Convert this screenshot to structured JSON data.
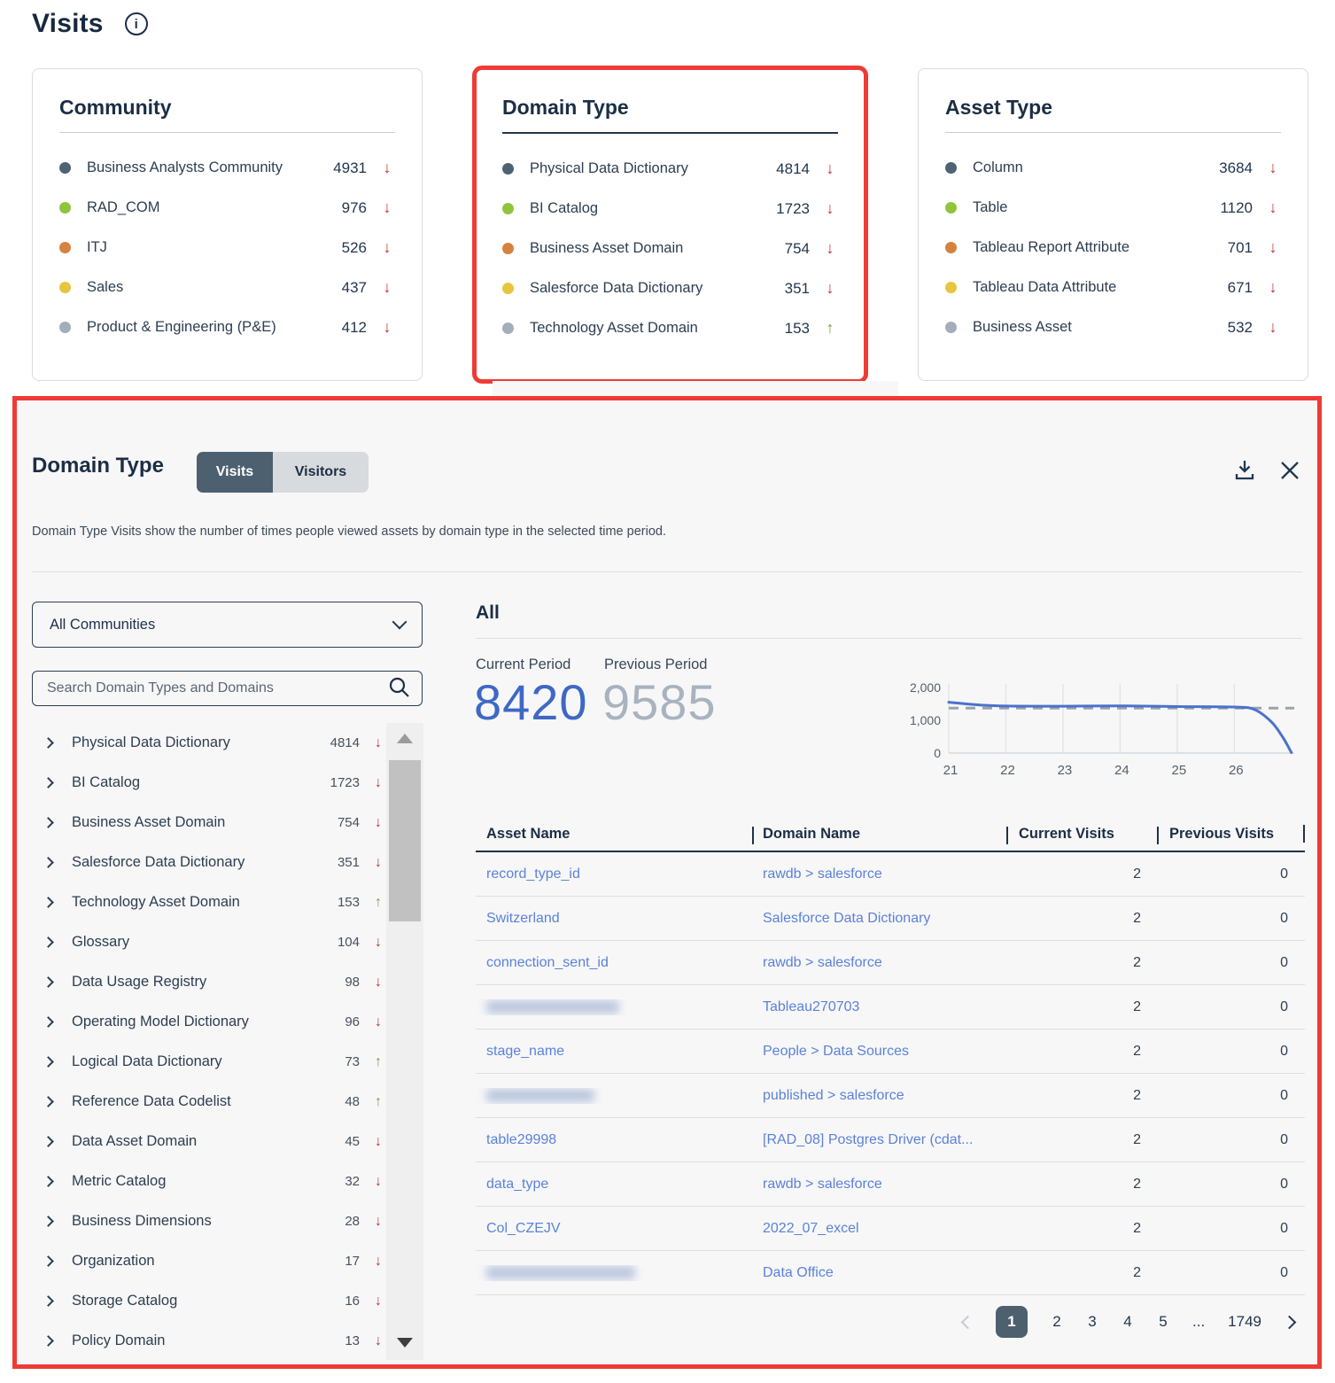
{
  "page": {
    "title": "Visits"
  },
  "colors": {
    "highlight_red": "#ef3b35",
    "trend_down": "#bf332e",
    "trend_up": "#70a03d",
    "link_blue": "#5b82d9",
    "current_blue": "#3e68c5",
    "previous_gray": "#a8b3bf",
    "active_slate": "#4d6070",
    "dot_palette": [
      "#4d6373",
      "#8fc43f",
      "#d4823d",
      "#e8c53e",
      "#a2aeb9"
    ]
  },
  "cards": [
    {
      "title": "Community",
      "highlighted": false,
      "items": [
        {
          "label": "Business Analysts Community",
          "value": "4931",
          "trend": "down"
        },
        {
          "label": "RAD_COM",
          "value": "976",
          "trend": "down"
        },
        {
          "label": "ITJ",
          "value": "526",
          "trend": "down"
        },
        {
          "label": "Sales",
          "value": "437",
          "trend": "down"
        },
        {
          "label": "Product & Engineering (P&E)",
          "value": "412",
          "trend": "down"
        }
      ]
    },
    {
      "title": "Domain Type",
      "highlighted": true,
      "items": [
        {
          "label": "Physical Data Dictionary",
          "value": "4814",
          "trend": "down"
        },
        {
          "label": "BI Catalog",
          "value": "1723",
          "trend": "down"
        },
        {
          "label": "Business Asset Domain",
          "value": "754",
          "trend": "down"
        },
        {
          "label": "Salesforce Data Dictionary",
          "value": "351",
          "trend": "down"
        },
        {
          "label": "Technology Asset Domain",
          "value": "153",
          "trend": "up"
        }
      ]
    },
    {
      "title": "Asset Type",
      "highlighted": false,
      "items": [
        {
          "label": "Column",
          "value": "3684",
          "trend": "down"
        },
        {
          "label": "Table",
          "value": "1120",
          "trend": "down"
        },
        {
          "label": "Tableau Report Attribute",
          "value": "701",
          "trend": "down"
        },
        {
          "label": "Tableau Data Attribute",
          "value": "671",
          "trend": "down"
        },
        {
          "label": "Business Asset",
          "value": "532",
          "trend": "down"
        }
      ]
    }
  ],
  "panel": {
    "title": "Domain Type",
    "tabs": [
      {
        "label": "Visits",
        "active": true
      },
      {
        "label": "Visitors",
        "active": false
      }
    ],
    "description": "Domain Type Visits show the number of times people viewed assets by domain type in the selected time period.",
    "community_filter": {
      "value": "All Communities"
    },
    "search": {
      "placeholder": "Search Domain Types and Domains"
    },
    "domain_list": [
      {
        "label": "Physical Data Dictionary",
        "value": "4814",
        "trend": "down"
      },
      {
        "label": "BI Catalog",
        "value": "1723",
        "trend": "down"
      },
      {
        "label": "Business Asset Domain",
        "value": "754",
        "trend": "down"
      },
      {
        "label": "Salesforce Data Dictionary",
        "value": "351",
        "trend": "down"
      },
      {
        "label": "Technology Asset Domain",
        "value": "153",
        "trend": "up"
      },
      {
        "label": "Glossary",
        "value": "104",
        "trend": "down"
      },
      {
        "label": "Data Usage Registry",
        "value": "98",
        "trend": "down"
      },
      {
        "label": "Operating Model Dictionary",
        "value": "96",
        "trend": "down"
      },
      {
        "label": "Logical Data Dictionary",
        "value": "73",
        "trend": "up"
      },
      {
        "label": "Reference Data Codelist",
        "value": "48",
        "trend": "up"
      },
      {
        "label": "Data Asset Domain",
        "value": "45",
        "trend": "down"
      },
      {
        "label": "Metric Catalog",
        "value": "32",
        "trend": "down"
      },
      {
        "label": "Business Dimensions",
        "value": "28",
        "trend": "down"
      },
      {
        "label": "Organization",
        "value": "17",
        "trend": "down"
      },
      {
        "label": "Storage Catalog",
        "value": "16",
        "trend": "down"
      },
      {
        "label": "Policy Domain",
        "value": "13",
        "trend": "down"
      }
    ],
    "detail": {
      "title": "All",
      "current_period_label": "Current Period",
      "previous_period_label": "Previous Period",
      "current_value": "8420",
      "previous_value": "9585"
    },
    "table": {
      "columns": [
        "Asset Name",
        "Domain Name",
        "Current Visits",
        "Previous Visits"
      ],
      "rows": [
        {
          "asset": "record_type_id",
          "asset_blurred": false,
          "domain": "rawdb > salesforce",
          "current": "2",
          "previous": "0"
        },
        {
          "asset": "Switzerland",
          "asset_blurred": false,
          "domain": "Salesforce Data Dictionary",
          "current": "2",
          "previous": "0"
        },
        {
          "asset": "connection_sent_id",
          "asset_blurred": false,
          "domain": "rawdb > salesforce",
          "current": "2",
          "previous": "0"
        },
        {
          "asset": null,
          "asset_blurred": true,
          "blur_width": 150,
          "domain": "Tableau270703",
          "current": "2",
          "previous": "0"
        },
        {
          "asset": "stage_name",
          "asset_blurred": false,
          "domain": "People > Data Sources",
          "current": "2",
          "previous": "0"
        },
        {
          "asset": null,
          "asset_blurred": true,
          "blur_width": 122,
          "domain": "published > salesforce",
          "current": "2",
          "previous": "0"
        },
        {
          "asset": "table29998",
          "asset_blurred": false,
          "domain": "[RAD_08] Postgres Driver (cdat...",
          "current": "2",
          "previous": "0"
        },
        {
          "asset": "data_type",
          "asset_blurred": false,
          "domain": "rawdb > salesforce",
          "current": "2",
          "previous": "0"
        },
        {
          "asset": "Col_CZEJV",
          "asset_blurred": false,
          "domain": "2022_07_excel",
          "current": "2",
          "previous": "0"
        },
        {
          "asset": null,
          "asset_blurred": true,
          "blur_width": 168,
          "domain": "Data Office",
          "current": "2",
          "previous": "0"
        }
      ]
    },
    "pagination": {
      "pages": [
        "1",
        "2",
        "3",
        "4",
        "5",
        "...",
        "1749"
      ],
      "active": "1"
    }
  },
  "chart_data": {
    "type": "line",
    "x": [
      21,
      22,
      23,
      24,
      25,
      26
    ],
    "series": [
      {
        "name": "Current Period",
        "values": [
          1550,
          1435,
          1430,
          1440,
          1420,
          1405
        ]
      }
    ],
    "end_drop": {
      "x": 27,
      "value": 0
    },
    "previous_period_baseline": 1370,
    "ylim": [
      0,
      2000
    ],
    "yticks": [
      0,
      1000,
      2000
    ],
    "ytick_labels": [
      "0",
      "1,000",
      "2,000"
    ],
    "grid": "vertical",
    "legend": "none",
    "line_color": "#4a72cc",
    "baseline_color": "#9aa3ad",
    "render_points": [
      [
        21,
        1550
      ],
      [
        21.6,
        1460
      ],
      [
        22,
        1435
      ],
      [
        23,
        1430
      ],
      [
        24,
        1440
      ],
      [
        25,
        1420
      ],
      [
        26,
        1405
      ],
      [
        26.35,
        1330
      ],
      [
        26.65,
        950
      ],
      [
        26.85,
        480
      ],
      [
        27,
        15
      ]
    ]
  }
}
